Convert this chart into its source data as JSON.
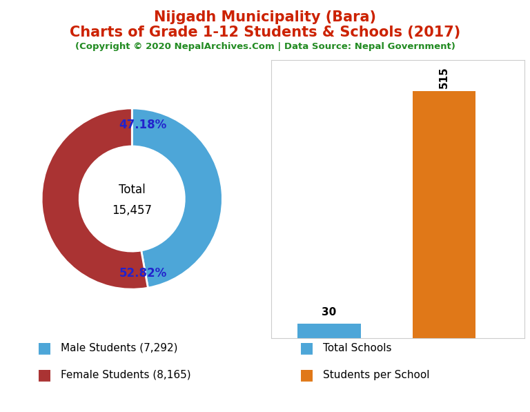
{
  "title_line1": "Nijgadh Municipality (Bara)",
  "title_line2": "Charts of Grade 1-12 Students & Schools (2017)",
  "subtitle": "(Copyright © 2020 NepalArchives.Com | Data Source: Nepal Government)",
  "title_color": "#cc2200",
  "subtitle_color": "#228B22",
  "male_students": 7292,
  "female_students": 8165,
  "total_students": 15457,
  "male_pct": 47.18,
  "female_pct": 52.82,
  "male_color": "#4da6d8",
  "female_color": "#aa3333",
  "total_schools": 30,
  "students_per_school": 515,
  "bar_school_color": "#4da6d8",
  "bar_students_color": "#e07818",
  "pct_label_color": "#2222cc",
  "legend_label_male": "Male Students (7,292)",
  "legend_label_female": "Female Students (8,165)",
  "legend_label_schools": "Total Schools",
  "legend_label_sps": "Students per School",
  "background_color": "#ffffff"
}
